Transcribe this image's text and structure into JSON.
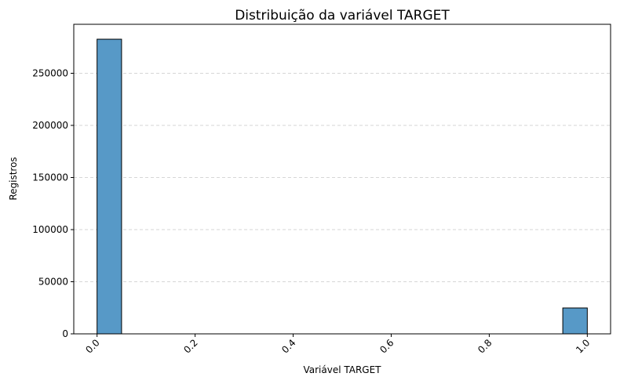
{
  "chart_data": {
    "type": "bar",
    "title": "Distribuição da variável TARGET",
    "xlabel": "Variável TARGET",
    "ylabel": "Registros",
    "xlim": [
      -0.0475,
      1.0475
    ],
    "ylim": [
      0,
      297000
    ],
    "xticks": [
      0.0,
      0.2,
      0.4,
      0.6,
      0.8,
      1.0
    ],
    "xtick_labels": [
      "0.0",
      "0.2",
      "0.4",
      "0.6",
      "0.8",
      "1.0"
    ],
    "yticks": [
      0,
      50000,
      100000,
      150000,
      200000,
      250000
    ],
    "ytick_labels": [
      "0",
      "50000",
      "100000",
      "150000",
      "200000",
      "250000"
    ],
    "grid": "y-dashed",
    "bar_color": "#5799c7",
    "edge_color": "#000000",
    "bins": [
      {
        "x0": 0.0,
        "x1": 0.05,
        "value": 282686
      },
      {
        "x0": 0.95,
        "x1": 1.0,
        "value": 24825
      }
    ]
  }
}
